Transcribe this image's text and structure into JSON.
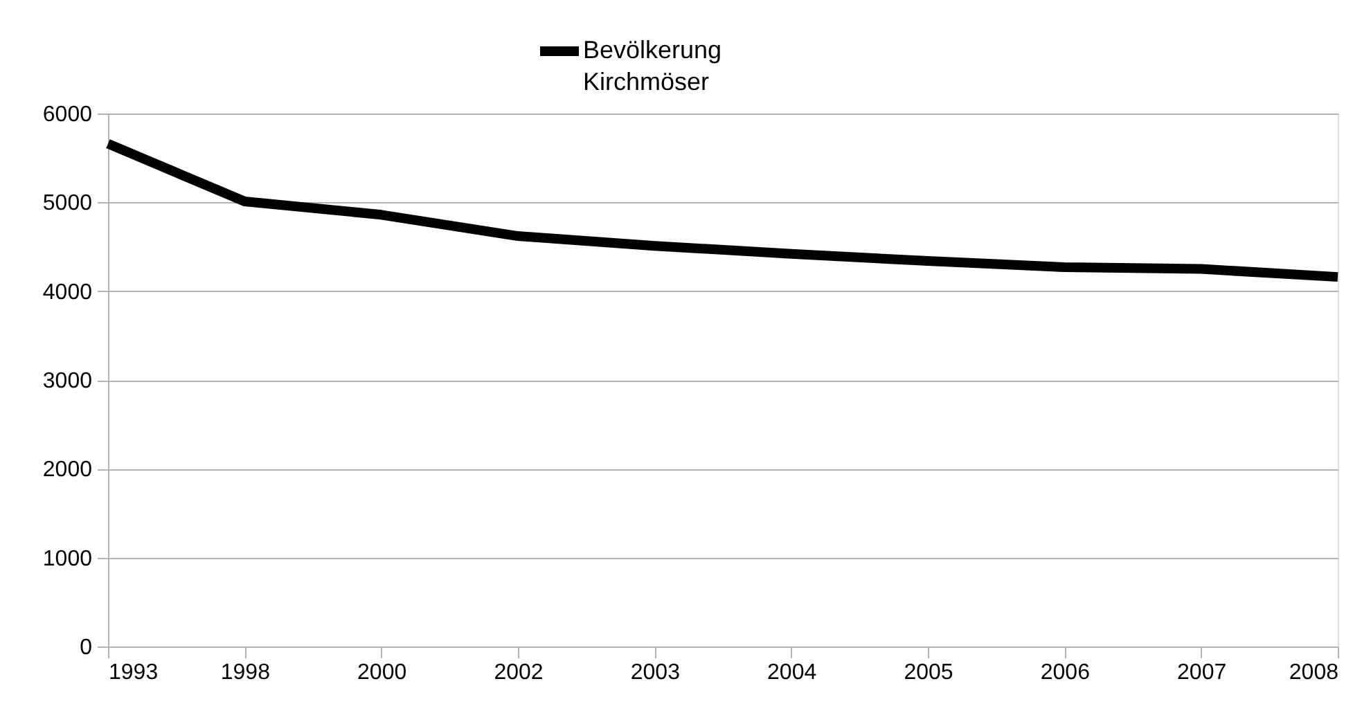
{
  "chart_data": {
    "type": "line",
    "categories": [
      "1993",
      "1998",
      "2000",
      "2002",
      "2003",
      "2004",
      "2005",
      "2006",
      "2007",
      "2008"
    ],
    "series": [
      {
        "name": "Bevölkerung Kirchmöser",
        "color": "#000000",
        "values": [
          5660,
          5010,
          4860,
          4620,
          4510,
          4420,
          4340,
          4270,
          4250,
          4160
        ]
      }
    ],
    "ylim": [
      0,
      6000
    ],
    "yticks": [
      0,
      1000,
      2000,
      3000,
      4000,
      5000,
      6000
    ],
    "grid": "y",
    "legend": "top",
    "marker": "none",
    "line_style": "solid"
  }
}
